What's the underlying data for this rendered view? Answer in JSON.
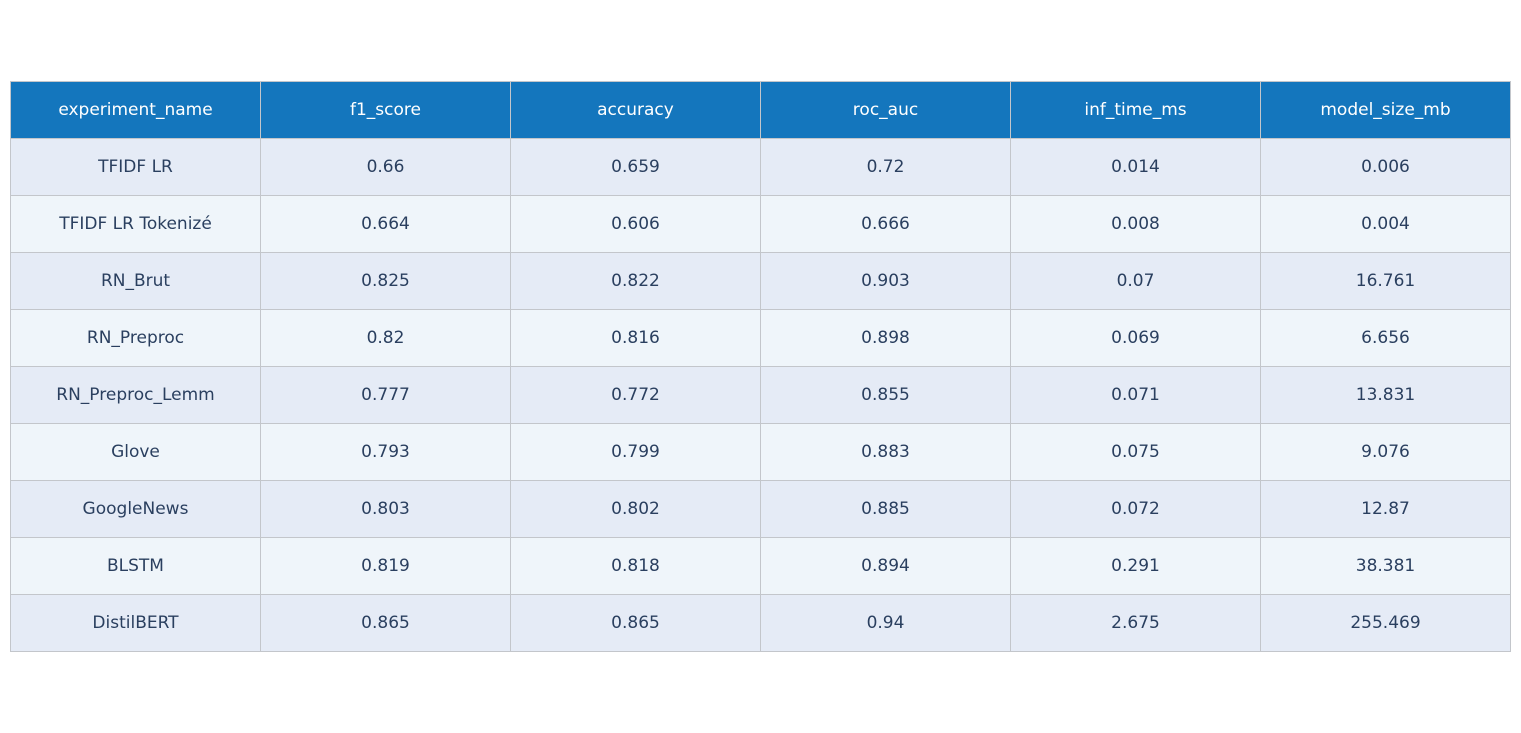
{
  "chart_data": {
    "type": "table",
    "columns": [
      "experiment_name",
      "f1_score",
      "accuracy",
      "roc_auc",
      "inf_time_ms",
      "model_size_mb"
    ],
    "rows": [
      [
        "TFIDF LR",
        "0.66",
        "0.659",
        "0.72",
        "0.014",
        "0.006"
      ],
      [
        "TFIDF LR Tokenizé",
        "0.664",
        "0.606",
        "0.666",
        "0.008",
        "0.004"
      ],
      [
        "RN_Brut",
        "0.825",
        "0.822",
        "0.903",
        "0.07",
        "16.761"
      ],
      [
        "RN_Preproc",
        "0.82",
        "0.816",
        "0.898",
        "0.069",
        "6.656"
      ],
      [
        "RN_Preproc_Lemm",
        "0.777",
        "0.772",
        "0.855",
        "0.071",
        "13.831"
      ],
      [
        "Glove",
        "0.793",
        "0.799",
        "0.883",
        "0.075",
        "9.076"
      ],
      [
        "GoogleNews",
        "0.803",
        "0.802",
        "0.885",
        "0.072",
        "12.87"
      ],
      [
        "BLSTM",
        "0.819",
        "0.818",
        "0.894",
        "0.291",
        "38.381"
      ],
      [
        "DistilBERT",
        "0.865",
        "0.865",
        "0.94",
        "2.675",
        "255.469"
      ]
    ],
    "header_color": "#1476bd",
    "header_text_color": "#ffffff",
    "row_colors": [
      "#e5ebf6",
      "#eff5fa"
    ],
    "text_color": "#2a3f5f",
    "border_color": "#c3c6cb"
  }
}
